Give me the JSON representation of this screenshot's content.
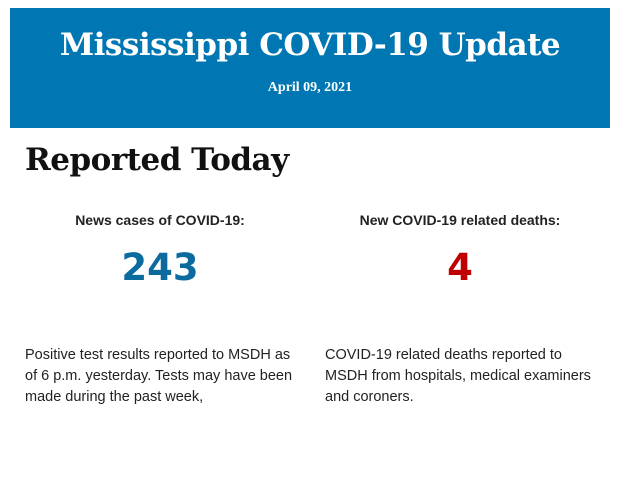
{
  "header": {
    "title": "Mississippi COVID-19 Update",
    "date": "April 09, 2021",
    "background": "#0077b3"
  },
  "section_title": "Reported Today",
  "stats": [
    {
      "label": "News cases of COVID-19:",
      "value": "243",
      "color": "#0b6a9e",
      "description": "Positive test results reported to MSDH as of 6 p.m. yesterday. Tests may have been made during the past week,"
    },
    {
      "label": "New COVID-19 related deaths:",
      "value": "4",
      "color": "#c00000",
      "description": "COVID-19 related deaths reported to MSDH from hospitals, medical examiners and coroners."
    }
  ]
}
